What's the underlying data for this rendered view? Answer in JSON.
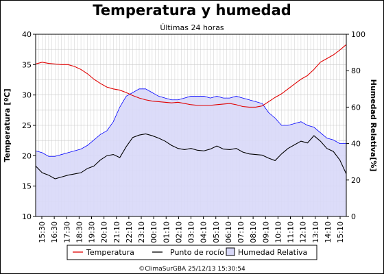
{
  "chart_data": {
    "type": "line",
    "title": "Temperatura y humedad",
    "subtitle": "Últimas 24 horas",
    "ylabel_left": "Temperatura [ºC]",
    "ylabel_right": "Humedad Relativa[%]",
    "ylim_left": [
      10,
      40
    ],
    "yticks_left": [
      "10",
      "15",
      "20",
      "25",
      "30",
      "35",
      "40"
    ],
    "ylim_right": [
      0,
      100
    ],
    "yticks_right": [
      "0",
      "20",
      "40",
      "60",
      "80",
      "100"
    ],
    "xlim_hours": [
      15.5,
      39.5
    ],
    "xticks": [
      "15:30",
      "16:30",
      "17:30",
      "18:30",
      "19:30",
      "20:10",
      "21:10",
      "22:10",
      "23:10",
      "00:10",
      "01:10",
      "02:10",
      "03:10",
      "04:10",
      "05:10",
      "06:10",
      "07:10",
      "08:10",
      "09:10",
      "10:10",
      "11:10",
      "12:10",
      "13:10",
      "14:10",
      "15:10"
    ],
    "grid": true,
    "legend_placement": "bottom",
    "credit": "©ClimaSurGBA 25/12/13 15:30:54",
    "series": [
      {
        "name": "Temperatura",
        "axis": "left",
        "kind": "line",
        "color": "#e00000",
        "x": [
          15.5,
          16,
          16.5,
          17,
          17.5,
          18,
          18.5,
          19,
          19.5,
          20,
          20.5,
          21,
          21.5,
          22,
          22.5,
          23,
          23.5,
          24,
          24.5,
          25,
          25.5,
          26,
          26.5,
          27,
          27.5,
          28,
          28.5,
          29,
          29.5,
          30,
          30.5,
          31,
          31.5,
          32,
          32.5,
          33,
          33.5,
          34,
          34.5,
          35,
          35.5,
          36,
          36.5,
          37,
          37.5,
          38,
          38.5,
          39,
          39.5
        ],
        "values": [
          35.1,
          35.4,
          35.2,
          35.1,
          35.0,
          35.0,
          34.7,
          34.2,
          33.5,
          32.6,
          31.9,
          31.3,
          31.0,
          30.8,
          30.4,
          29.9,
          29.5,
          29.2,
          29.0,
          28.9,
          28.8,
          28.7,
          28.8,
          28.6,
          28.4,
          28.3,
          28.3,
          28.3,
          28.4,
          28.5,
          28.6,
          28.4,
          28.1,
          28.0,
          28.0,
          28.2,
          28.9,
          29.6,
          30.2,
          31.0,
          31.8,
          32.6,
          33.2,
          34.2,
          35.4,
          36.0,
          36.6,
          37.4,
          38.3
        ]
      },
      {
        "name": "Punto de rocío",
        "axis": "left",
        "kind": "line",
        "color": "#000000",
        "x": [
          15.5,
          16,
          16.5,
          17,
          17.5,
          18,
          18.5,
          19,
          19.5,
          20,
          20.5,
          21,
          21.5,
          22,
          22.5,
          23,
          23.5,
          24,
          24.5,
          25,
          25.5,
          26,
          26.5,
          27,
          27.5,
          28,
          28.5,
          29,
          29.5,
          30,
          30.5,
          31,
          31.5,
          32,
          32.5,
          33,
          33.5,
          34,
          34.5,
          35,
          35.5,
          36,
          36.5,
          37,
          37.5,
          38,
          38.5,
          39,
          39.5
        ],
        "values": [
          18.3,
          17.2,
          16.8,
          16.2,
          16.5,
          16.8,
          17.0,
          17.2,
          17.9,
          18.3,
          19.3,
          20.0,
          20.2,
          19.7,
          21.5,
          23.0,
          23.4,
          23.6,
          23.3,
          22.9,
          22.4,
          21.7,
          21.2,
          21.0,
          21.2,
          20.9,
          20.8,
          21.1,
          21.6,
          21.1,
          21.0,
          21.2,
          20.6,
          20.3,
          20.2,
          20.1,
          19.6,
          19.2,
          20.3,
          21.2,
          21.8,
          22.4,
          22.1,
          23.3,
          22.4,
          21.2,
          20.7,
          19.3,
          17.0
        ]
      },
      {
        "name": "Humedad Relativa",
        "axis": "right",
        "kind": "area",
        "color": "#0000ff",
        "fill": "#d8d8f8",
        "x": [
          15.5,
          16,
          16.5,
          17,
          17.5,
          18,
          18.5,
          19,
          19.5,
          20,
          20.5,
          21,
          21.5,
          22,
          22.5,
          23,
          23.5,
          24,
          24.5,
          25,
          25.5,
          26,
          26.5,
          27,
          27.5,
          28,
          28.5,
          29,
          29.5,
          30,
          30.5,
          31,
          31.5,
          32,
          32.5,
          33,
          33.5,
          34,
          34.5,
          35,
          35.5,
          36,
          36.5,
          37,
          37.5,
          38,
          38.5,
          39,
          39.5
        ],
        "values": [
          36,
          35,
          33,
          33,
          34,
          35,
          36,
          37,
          39,
          42,
          45,
          47,
          52,
          60,
          66,
          68,
          70,
          70,
          68,
          66,
          65,
          64,
          64,
          65,
          66,
          66,
          66,
          65,
          66,
          65,
          65,
          66,
          65,
          64,
          63,
          62,
          57,
          54,
          50,
          50,
          51,
          52,
          50,
          49,
          46,
          43,
          42,
          40,
          40
        ]
      }
    ]
  }
}
